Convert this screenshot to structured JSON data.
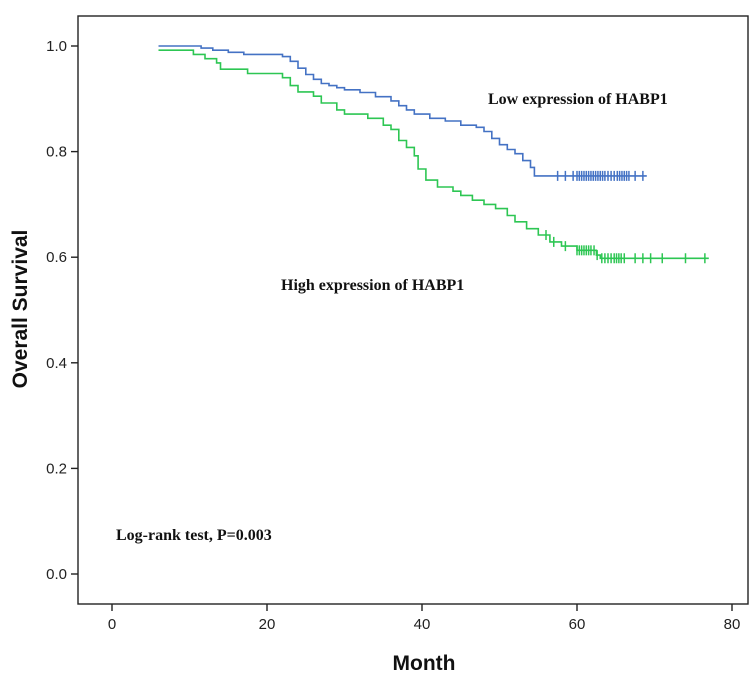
{
  "chart_data": {
    "type": "line",
    "xlabel": "Month",
    "ylabel": "Overall Survival",
    "xlim": [
      -5,
      80
    ],
    "ylim": [
      -0.05,
      1.1
    ],
    "x_ticks": [
      0,
      20,
      40,
      60,
      80
    ],
    "y_ticks": [
      0.0,
      0.2,
      0.4,
      0.6,
      0.8,
      1.0
    ],
    "x_tick_labels": [
      "0",
      "20",
      "40",
      "60",
      "80"
    ],
    "y_tick_labels": [
      "0.0",
      "0.2",
      "0.4",
      "0.6",
      "0.8",
      "1.0"
    ],
    "grid": false,
    "annotations": {
      "low_label": "Low expression of HABP1",
      "high_label": "High expression of HABP1",
      "logrank": "Log-rank test, P=0.003"
    },
    "series": [
      {
        "key": "low",
        "color": "#4472c4",
        "step_points": [
          [
            6,
            1.0
          ],
          [
            11.5,
            0.996
          ],
          [
            13,
            0.992
          ],
          [
            15,
            0.988
          ],
          [
            17,
            0.984
          ],
          [
            22,
            0.98
          ],
          [
            23,
            0.971
          ],
          [
            24,
            0.958
          ],
          [
            25,
            0.946
          ],
          [
            26,
            0.937
          ],
          [
            27,
            0.929
          ],
          [
            28,
            0.925
          ],
          [
            29,
            0.921
          ],
          [
            30,
            0.917
          ],
          [
            32,
            0.912
          ],
          [
            34,
            0.904
          ],
          [
            36,
            0.896
          ],
          [
            37,
            0.887
          ],
          [
            38,
            0.879
          ],
          [
            39,
            0.871
          ],
          [
            41,
            0.863
          ],
          [
            43,
            0.858
          ],
          [
            45,
            0.85
          ],
          [
            47,
            0.846
          ],
          [
            48,
            0.838
          ],
          [
            49,
            0.825
          ],
          [
            50,
            0.813
          ],
          [
            51,
            0.804
          ],
          [
            52,
            0.796
          ],
          [
            53,
            0.783
          ],
          [
            54,
            0.77
          ],
          [
            54.5,
            0.754
          ],
          [
            69,
            0.754
          ]
        ],
        "censor_x": [
          57.5,
          58.5,
          59.5,
          60,
          60.3,
          60.6,
          60.9,
          61.2,
          61.5,
          61.8,
          62.1,
          62.4,
          62.7,
          63,
          63.3,
          63.6,
          64,
          64.4,
          64.8,
          65.2,
          65.5,
          65.8,
          66.1,
          66.4,
          66.7,
          67.5,
          68.5
        ]
      },
      {
        "key": "high",
        "color": "#2dc653",
        "step_points": [
          [
            6,
            0.992
          ],
          [
            10.5,
            0.984
          ],
          [
            12,
            0.976
          ],
          [
            13.5,
            0.968
          ],
          [
            14,
            0.956
          ],
          [
            17.5,
            0.948
          ],
          [
            22,
            0.94
          ],
          [
            23,
            0.925
          ],
          [
            24,
            0.913
          ],
          [
            26,
            0.905
          ],
          [
            27,
            0.892
          ],
          [
            29,
            0.879
          ],
          [
            30,
            0.871
          ],
          [
            33,
            0.863
          ],
          [
            35,
            0.85
          ],
          [
            36,
            0.842
          ],
          [
            37,
            0.821
          ],
          [
            38,
            0.808
          ],
          [
            39,
            0.792
          ],
          [
            39.5,
            0.767
          ],
          [
            40.5,
            0.746
          ],
          [
            42,
            0.733
          ],
          [
            44,
            0.725
          ],
          [
            45,
            0.717
          ],
          [
            46.5,
            0.708
          ],
          [
            48,
            0.7
          ],
          [
            49.5,
            0.692
          ],
          [
            51,
            0.679
          ],
          [
            52,
            0.667
          ],
          [
            53.5,
            0.654
          ],
          [
            55,
            0.642
          ],
          [
            56.5,
            0.629
          ],
          [
            58,
            0.621
          ],
          [
            60,
            0.613
          ],
          [
            62.5,
            0.604
          ],
          [
            63,
            0.598
          ],
          [
            77,
            0.598
          ]
        ],
        "censor_x": [
          56,
          57,
          58.5,
          60,
          60.3,
          60.6,
          60.9,
          61.2,
          61.5,
          61.8,
          62.2,
          62.6,
          63.2,
          63.6,
          64,
          64.4,
          64.8,
          65.1,
          65.4,
          65.7,
          66.1,
          67.5,
          68.5,
          69.5,
          71,
          74,
          76.5
        ]
      }
    ]
  }
}
